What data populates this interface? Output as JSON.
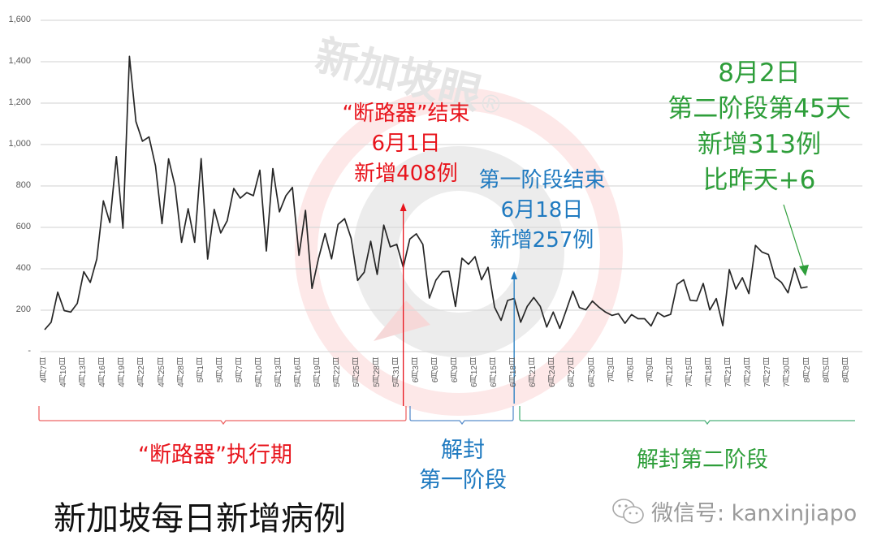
{
  "watermark": {
    "text": "新加坡眼",
    "mark": "®"
  },
  "title": "新加坡每日新增病例",
  "wechat": {
    "icon": "wechat-icon",
    "text": "微信号: kanxinjiapo"
  },
  "annotations": {
    "circuit_breaker_end": {
      "lines": [
        "“断路器”结束",
        "6月1日",
        "新增408例"
      ],
      "color": "#e8141c"
    },
    "phase1_end": {
      "lines": [
        "第一阶段结束",
        "6月18日",
        "新增257例"
      ],
      "color": "#1f7ac0"
    },
    "latest": {
      "lines": [
        "8月2日",
        "第二阶段第45天",
        "新增313例",
        "比昨天+6"
      ],
      "color": "#2e9e3a"
    }
  },
  "periods": {
    "circuit_breaker": {
      "label": "“断路器”执行期",
      "color": "#e8141c"
    },
    "phase1": {
      "lines": [
        "解封",
        "第一阶段"
      ],
      "color": "#1f7ac0"
    },
    "phase2": {
      "label": "解封第二阶段",
      "color": "#2e9e3a"
    }
  },
  "chart_data": {
    "type": "line",
    "title": "新加坡每日新增病例",
    "xlabel": "",
    "ylabel": "",
    "ylim": [
      0,
      1600
    ],
    "yticks": [
      "-",
      "200",
      "400",
      "600",
      "800",
      "1,000",
      "1,200",
      "1,400",
      "1,600"
    ],
    "grid": true,
    "legend": "none",
    "xtick_labels": [
      "4月7日",
      "4月10日",
      "4月13日",
      "4月16日",
      "4月19日",
      "4月22日",
      "4月25日",
      "4月28日",
      "5月1日",
      "5月4日",
      "5月7日",
      "5月10日",
      "5月13日",
      "5月16日",
      "5月19日",
      "5月22日",
      "5月25日",
      "5月28日",
      "5月31日",
      "6月3日",
      "6月6日",
      "6月9日",
      "6月12日",
      "6月15日",
      "6月18日",
      "6月21日",
      "6月24日",
      "6月27日",
      "6月30日",
      "7月3日",
      "7月6日",
      "7月9日",
      "7月12日",
      "7月15日",
      "7月18日",
      "7月21日",
      "7月24日",
      "7月27日",
      "7月30日",
      "8月2日",
      "8月5日",
      "8月8日"
    ],
    "x_start": "4月7日",
    "x_end_data": "8月2日",
    "series": [
      {
        "name": "每日新增病例",
        "color": "#262626",
        "values": [
          106,
          142,
          287,
          198,
          191,
          233,
          386,
          334,
          447,
          728,
          623,
          942,
          596,
          1426,
          1111,
          1016,
          1037,
          897,
          618,
          931,
          799,
          528,
          690,
          528,
          932,
          447,
          687,
          573,
          632,
          788,
          741,
          768,
          753,
          876,
          486,
          884,
          675,
          753,
          793,
          465,
          682,
          305,
          451,
          570,
          448,
          614,
          642,
          548,
          344,
          383,
          533,
          373,
          611,
          506,
          518,
          408,
          544,
          569,
          518,
          259,
          345,
          386,
          388,
          218,
          451,
          422,
          459,
          347,
          407,
          214,
          151,
          247,
          257,
          142,
          218,
          261,
          219,
          119,
          191,
          112,
          201,
          292,
          213,
          202,
          244,
          215,
          191,
          175,
          183,
          137,
          179,
          159,
          159,
          124,
          189,
          169,
          180,
          325,
          347,
          248,
          245,
          329,
          201,
          256,
          125,
          396,
          302,
          357,
          280,
          513,
          481,
          469,
          359,
          334,
          284,
          403,
          307,
          313
        ]
      }
    ],
    "markers": [
      {
        "date": "6月1日",
        "value": 408,
        "color": "#e8141c"
      },
      {
        "date": "6月18日",
        "value": 257,
        "color": "#1f7ac0"
      },
      {
        "date": "8月2日",
        "value": 313,
        "color": "#2e9e3a"
      }
    ]
  }
}
